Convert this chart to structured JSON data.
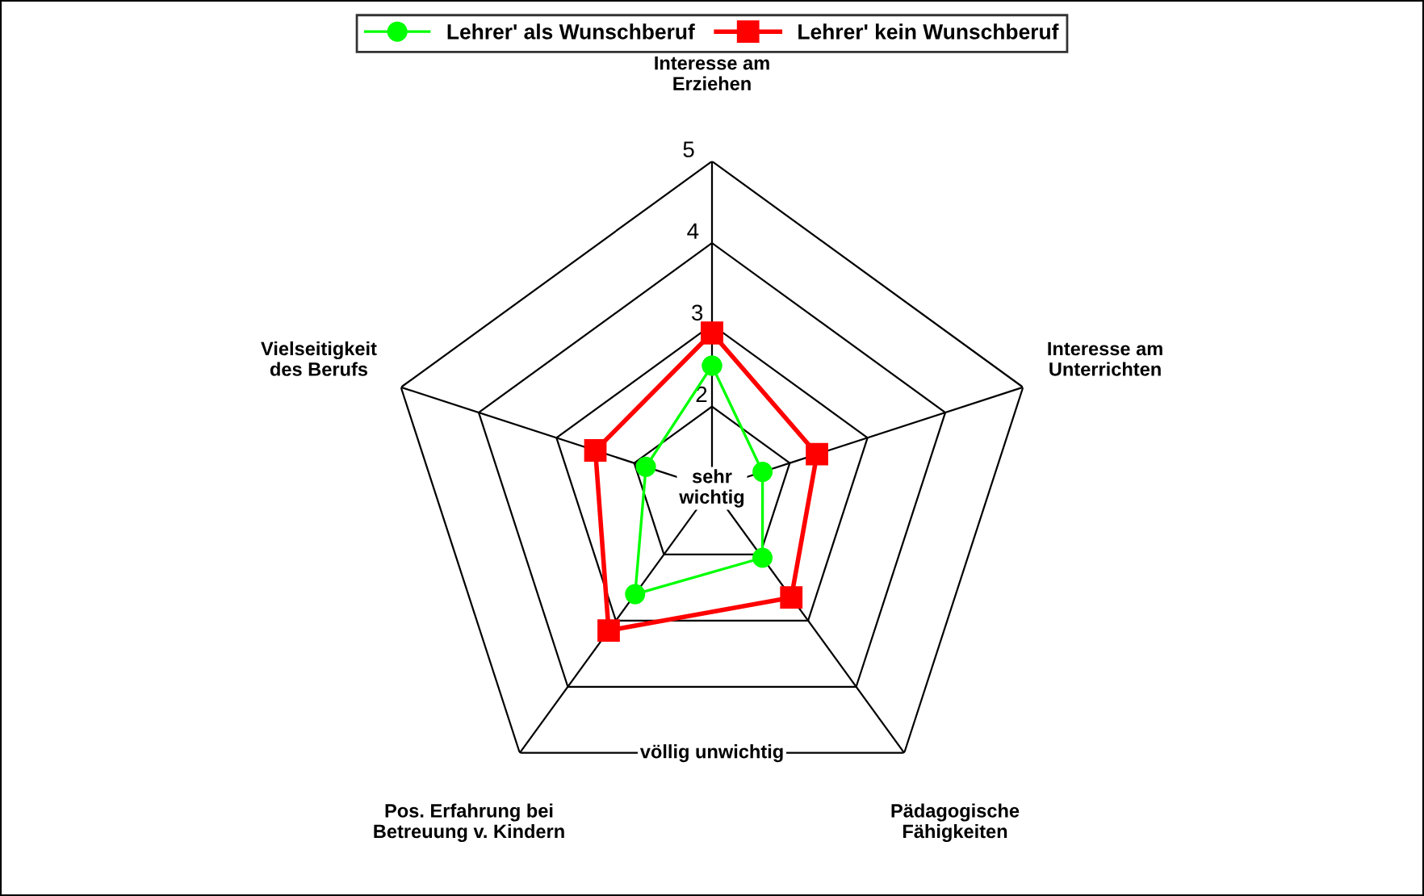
{
  "chart_data": {
    "type": "radar",
    "categories": [
      "Interesse am\nErziehen",
      "Interesse am\nUnterrichten",
      "Pädagogische\nFähigkeiten",
      "Pos. Erfahrung bei\nBetreuung v. Kindern",
      "Vielseitigkeit\ndes Berufs"
    ],
    "series": [
      {
        "name": "Lehrer' als Wunschberuf",
        "color": "#00ff00",
        "marker": "circle",
        "values": [
          2.5,
          1.65,
          2.05,
          2.6,
          1.85
        ]
      },
      {
        "name": "Lehrer' kein Wunschberuf",
        "color": "#ff0000",
        "marker": "square",
        "values": [
          2.9,
          2.35,
          2.65,
          3.15,
          2.5
        ]
      }
    ],
    "ylim": [
      1,
      5
    ],
    "yticks": [
      2,
      3,
      4,
      5
    ],
    "grid": true,
    "legend": "top",
    "annotations": [
      "sehr\nwichtig",
      "völlig unwichtig"
    ]
  }
}
